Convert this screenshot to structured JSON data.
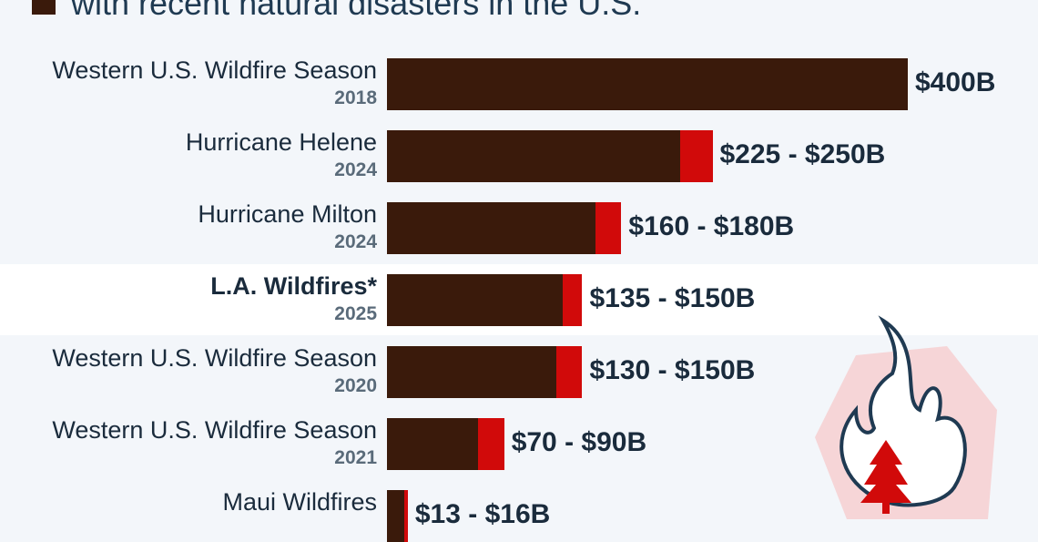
{
  "header": {
    "subtitle": "with recent natural disasters in the U.S."
  },
  "colors": {
    "low_estimate": "#3a1a0b",
    "range_extension": "#d10a0a",
    "highlight_band": "#ffffff"
  },
  "decoration": {
    "icon": "flame-with-tree-icon"
  },
  "chart_data": {
    "type": "bar",
    "orientation": "horizontal",
    "unit": "USD billions",
    "xlim": [
      0,
      400
    ],
    "highlighted_category": "L.A. Wildfires*",
    "categories": [
      {
        "name": "Western U.S. Wildfire Season",
        "year": "2018",
        "low": 400,
        "high": 400,
        "label": "$400B"
      },
      {
        "name": "Hurricane Helene",
        "year": "2024",
        "low": 225,
        "high": 250,
        "label": "$225 - $250B"
      },
      {
        "name": "Hurricane Milton",
        "year": "2024",
        "low": 160,
        "high": 180,
        "label": "$160 - $180B"
      },
      {
        "name": "L.A. Wildfires*",
        "year": "2025",
        "low": 135,
        "high": 150,
        "label": "$135 - $150B"
      },
      {
        "name": "Western U.S. Wildfire Season",
        "year": "2020",
        "low": 130,
        "high": 150,
        "label": "$130 - $150B"
      },
      {
        "name": "Western U.S. Wildfire Season",
        "year": "2021",
        "low": 70,
        "high": 90,
        "label": "$70 - $90B"
      },
      {
        "name": "Maui Wildfires",
        "year": "",
        "low": 13,
        "high": 16,
        "label": "$13 - $16B"
      }
    ]
  }
}
